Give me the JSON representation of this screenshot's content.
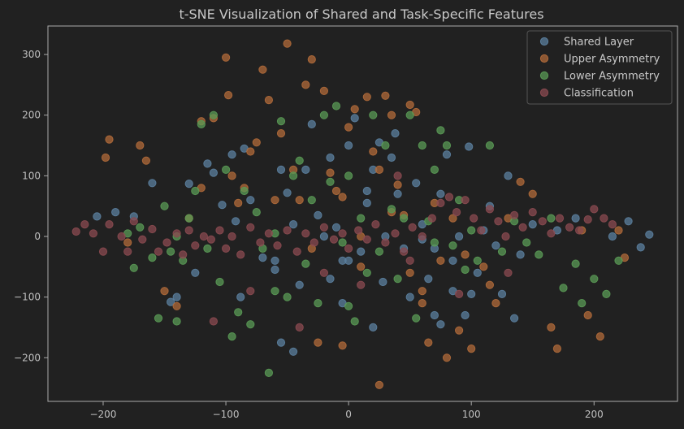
{
  "chart_data": {
    "type": "scatter",
    "title": "t-SNE Visualization of Shared and Task-Specific Features",
    "xlabel": "",
    "ylabel": "",
    "xlim": [
      -245,
      268
    ],
    "ylim": [
      -272,
      347
    ],
    "xticks": [
      -200,
      -100,
      0,
      100,
      200
    ],
    "yticks": [
      -200,
      -100,
      0,
      100,
      200,
      300
    ],
    "xtick_labels": [
      "−200",
      "−100",
      "0",
      "100",
      "200"
    ],
    "ytick_labels": [
      "−200",
      "−100",
      "0",
      "100",
      "200",
      "300"
    ],
    "grid": false,
    "legend_position": "top-right",
    "colors": {
      "background": "#212121",
      "axes_face": "#212121",
      "spine": "#aaaaaa",
      "text": "#c0c0c0"
    },
    "series": [
      {
        "name": "Shared Layer",
        "color": "#5b7f9e",
        "points": [
          [
            -205,
            33
          ],
          [
            -190,
            40
          ],
          [
            -175,
            33
          ],
          [
            -160,
            88
          ],
          [
            -145,
            -108
          ],
          [
            -140,
            -100
          ],
          [
            -130,
            87
          ],
          [
            -125,
            -60
          ],
          [
            -115,
            120
          ],
          [
            -110,
            105
          ],
          [
            -103,
            52
          ],
          [
            -95,
            135
          ],
          [
            -92,
            25
          ],
          [
            -88,
            -100
          ],
          [
            -85,
            145
          ],
          [
            -80,
            60
          ],
          [
            -70,
            -35
          ],
          [
            -60,
            -55
          ],
          [
            -55,
            110
          ],
          [
            -50,
            72
          ],
          [
            -45,
            20
          ],
          [
            -40,
            -80
          ],
          [
            -35,
            110
          ],
          [
            -30,
            185
          ],
          [
            -25,
            35
          ],
          [
            -20,
            0
          ],
          [
            -15,
            130
          ],
          [
            -10,
            15
          ],
          [
            -5,
            -40
          ],
          [
            0,
            150
          ],
          [
            5,
            195
          ],
          [
            10,
            -25
          ],
          [
            15,
            55
          ],
          [
            20,
            110
          ],
          [
            25,
            155
          ],
          [
            28,
            -75
          ],
          [
            30,
            0
          ],
          [
            35,
            130
          ],
          [
            38,
            170
          ],
          [
            40,
            70
          ],
          [
            45,
            -20
          ],
          [
            50,
            -100
          ],
          [
            55,
            88
          ],
          [
            60,
            20
          ],
          [
            65,
            -70
          ],
          [
            70,
            -20
          ],
          [
            75,
            70
          ],
          [
            80,
            135
          ],
          [
            85,
            -40
          ],
          [
            90,
            0
          ],
          [
            95,
            -130
          ],
          [
            98,
            148
          ],
          [
            100,
            -95
          ],
          [
            105,
            -60
          ],
          [
            110,
            10
          ],
          [
            115,
            50
          ],
          [
            120,
            -15
          ],
          [
            125,
            -95
          ],
          [
            130,
            100
          ],
          [
            135,
            -135
          ],
          [
            140,
            -30
          ],
          [
            150,
            20
          ],
          [
            170,
            10
          ],
          [
            185,
            30
          ],
          [
            215,
            0
          ],
          [
            228,
            25
          ],
          [
            238,
            -18
          ],
          [
            245,
            3
          ],
          [
            -60,
            -40
          ],
          [
            -55,
            -175
          ],
          [
            -45,
            -190
          ],
          [
            -5,
            -110
          ],
          [
            -15,
            -70
          ],
          [
            60,
            -5
          ],
          [
            70,
            -130
          ],
          [
            75,
            -145
          ],
          [
            85,
            -90
          ],
          [
            20,
            -150
          ],
          [
            0,
            -40
          ],
          [
            15,
            75
          ]
        ]
      },
      {
        "name": "Upper Asymmetry",
        "color": "#b06a3a",
        "points": [
          [
            -198,
            130
          ],
          [
            -195,
            160
          ],
          [
            -170,
            150
          ],
          [
            -165,
            125
          ],
          [
            -150,
            -90
          ],
          [
            -140,
            -115
          ],
          [
            -120,
            190
          ],
          [
            -110,
            195
          ],
          [
            -100,
            295
          ],
          [
            -98,
            233
          ],
          [
            -95,
            100
          ],
          [
            -90,
            55
          ],
          [
            -85,
            80
          ],
          [
            -80,
            140
          ],
          [
            -75,
            155
          ],
          [
            -70,
            275
          ],
          [
            -65,
            225
          ],
          [
            -55,
            170
          ],
          [
            -50,
            318
          ],
          [
            -45,
            110
          ],
          [
            -40,
            60
          ],
          [
            -35,
            250
          ],
          [
            -30,
            292
          ],
          [
            -25,
            -175
          ],
          [
            -20,
            240
          ],
          [
            -15,
            105
          ],
          [
            -10,
            75
          ],
          [
            -5,
            65
          ],
          [
            0,
            180
          ],
          [
            5,
            210
          ],
          [
            10,
            -50
          ],
          [
            15,
            230
          ],
          [
            20,
            140
          ],
          [
            25,
            110
          ],
          [
            30,
            232
          ],
          [
            35,
            200
          ],
          [
            40,
            85
          ],
          [
            45,
            35
          ],
          [
            50,
            217
          ],
          [
            55,
            205
          ],
          [
            60,
            -90
          ],
          [
            65,
            -175
          ],
          [
            70,
            55
          ],
          [
            75,
            -40
          ],
          [
            80,
            -200
          ],
          [
            85,
            30
          ],
          [
            90,
            -155
          ],
          [
            95,
            -30
          ],
          [
            100,
            -185
          ],
          [
            110,
            -50
          ],
          [
            115,
            -80
          ],
          [
            120,
            -110
          ],
          [
            130,
            30
          ],
          [
            140,
            90
          ],
          [
            150,
            70
          ],
          [
            165,
            -150
          ],
          [
            170,
            -185
          ],
          [
            190,
            10
          ],
          [
            195,
            -130
          ],
          [
            205,
            -165
          ],
          [
            220,
            10
          ],
          [
            225,
            -35
          ],
          [
            -180,
            -10
          ],
          [
            -130,
            30
          ],
          [
            -120,
            80
          ],
          [
            -60,
            60
          ],
          [
            -30,
            -20
          ],
          [
            10,
            0
          ],
          [
            25,
            -245
          ],
          [
            50,
            -60
          ],
          [
            60,
            -110
          ],
          [
            -5,
            -180
          ],
          [
            35,
            40
          ]
        ]
      },
      {
        "name": "Lower Asymmetry",
        "color": "#5a9a55",
        "points": [
          [
            -175,
            -52
          ],
          [
            -170,
            15
          ],
          [
            -160,
            -35
          ],
          [
            -155,
            -135
          ],
          [
            -150,
            50
          ],
          [
            -145,
            -25
          ],
          [
            -140,
            -140
          ],
          [
            -135,
            -40
          ],
          [
            -130,
            30
          ],
          [
            -125,
            75
          ],
          [
            -120,
            185
          ],
          [
            -115,
            -20
          ],
          [
            -110,
            200
          ],
          [
            -105,
            -75
          ],
          [
            -100,
            110
          ],
          [
            -95,
            -165
          ],
          [
            -90,
            -125
          ],
          [
            -85,
            75
          ],
          [
            -80,
            -145
          ],
          [
            -75,
            40
          ],
          [
            -70,
            -20
          ],
          [
            -65,
            -225
          ],
          [
            -60,
            5
          ],
          [
            -55,
            190
          ],
          [
            -50,
            -100
          ],
          [
            -45,
            100
          ],
          [
            -40,
            125
          ],
          [
            -35,
            -45
          ],
          [
            -30,
            60
          ],
          [
            -25,
            -110
          ],
          [
            -20,
            200
          ],
          [
            -15,
            90
          ],
          [
            -10,
            215
          ],
          [
            -5,
            -10
          ],
          [
            0,
            100
          ],
          [
            5,
            -140
          ],
          [
            10,
            30
          ],
          [
            15,
            -60
          ],
          [
            20,
            200
          ],
          [
            25,
            -25
          ],
          [
            30,
            150
          ],
          [
            35,
            45
          ],
          [
            40,
            -70
          ],
          [
            45,
            30
          ],
          [
            50,
            200
          ],
          [
            55,
            -135
          ],
          [
            60,
            150
          ],
          [
            65,
            25
          ],
          [
            70,
            110
          ],
          [
            75,
            175
          ],
          [
            80,
            150
          ],
          [
            85,
            -15
          ],
          [
            90,
            60
          ],
          [
            95,
            -55
          ],
          [
            100,
            10
          ],
          [
            105,
            -40
          ],
          [
            115,
            150
          ],
          [
            125,
            -25
          ],
          [
            135,
            25
          ],
          [
            145,
            -10
          ],
          [
            155,
            -30
          ],
          [
            165,
            30
          ],
          [
            175,
            -85
          ],
          [
            185,
            -45
          ],
          [
            190,
            -110
          ],
          [
            200,
            -70
          ],
          [
            210,
            -95
          ],
          [
            220,
            -40
          ],
          [
            -180,
            5
          ],
          [
            -140,
            0
          ],
          [
            -60,
            -90
          ],
          [
            0,
            -115
          ],
          [
            70,
            -10
          ]
        ]
      },
      {
        "name": "Classification",
        "color": "#8a4a50",
        "points": [
          [
            -222,
            8
          ],
          [
            -215,
            20
          ],
          [
            -208,
            5
          ],
          [
            -200,
            -25
          ],
          [
            -195,
            20
          ],
          [
            -185,
            0
          ],
          [
            -180,
            -25
          ],
          [
            -175,
            25
          ],
          [
            -168,
            -5
          ],
          [
            -160,
            12
          ],
          [
            -155,
            -25
          ],
          [
            -148,
            -10
          ],
          [
            -140,
            5
          ],
          [
            -135,
            -30
          ],
          [
            -130,
            10
          ],
          [
            -125,
            -15
          ],
          [
            -118,
            0
          ],
          [
            -112,
            -5
          ],
          [
            -105,
            10
          ],
          [
            -100,
            -20
          ],
          [
            -95,
            0
          ],
          [
            -88,
            -30
          ],
          [
            -80,
            15
          ],
          [
            -72,
            -10
          ],
          [
            -65,
            5
          ],
          [
            -58,
            -15
          ],
          [
            -50,
            10
          ],
          [
            -42,
            -25
          ],
          [
            -35,
            5
          ],
          [
            -28,
            -10
          ],
          [
            -20,
            15
          ],
          [
            -12,
            -5
          ],
          [
            -5,
            5
          ],
          [
            0,
            -20
          ],
          [
            8,
            10
          ],
          [
            15,
            -5
          ],
          [
            22,
            20
          ],
          [
            30,
            -10
          ],
          [
            38,
            5
          ],
          [
            45,
            -25
          ],
          [
            52,
            15
          ],
          [
            60,
            0
          ],
          [
            68,
            30
          ],
          [
            75,
            55
          ],
          [
            82,
            65
          ],
          [
            88,
            40
          ],
          [
            95,
            60
          ],
          [
            102,
            30
          ],
          [
            108,
            10
          ],
          [
            115,
            45
          ],
          [
            122,
            25
          ],
          [
            128,
            0
          ],
          [
            135,
            35
          ],
          [
            142,
            15
          ],
          [
            150,
            40
          ],
          [
            158,
            25
          ],
          [
            165,
            5
          ],
          [
            172,
            30
          ],
          [
            180,
            15
          ],
          [
            188,
            10
          ],
          [
            195,
            28
          ],
          [
            200,
            45
          ],
          [
            208,
            30
          ],
          [
            215,
            20
          ],
          [
            -110,
            -140
          ],
          [
            -80,
            -90
          ],
          [
            -40,
            -150
          ],
          [
            10,
            -80
          ],
          [
            50,
            -40
          ],
          [
            90,
            -95
          ],
          [
            130,
            -60
          ],
          [
            -20,
            -60
          ],
          [
            40,
            100
          ]
        ]
      }
    ]
  }
}
